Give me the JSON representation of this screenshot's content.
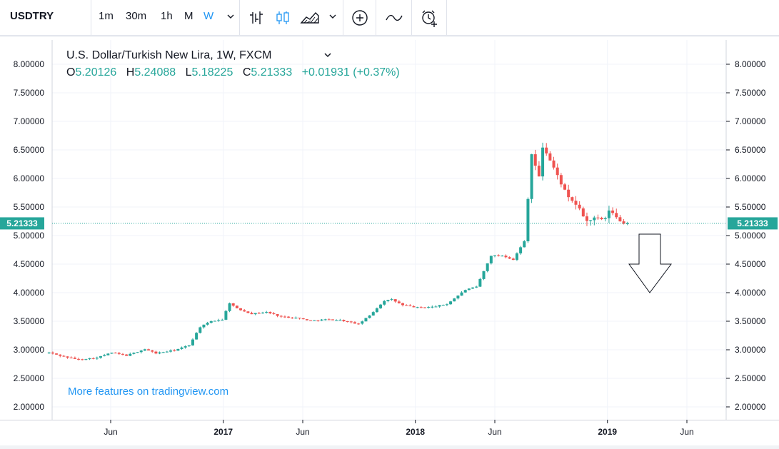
{
  "toolbar": {
    "symbol": "USDTRY",
    "intervals": [
      "1m",
      "30m",
      "1h",
      "M",
      "W"
    ],
    "active_interval": "W",
    "icons": [
      "bar-chart-icon",
      "candles-icon",
      "area-chart-icon",
      "chevron-down-icon",
      "add-compare-icon",
      "indicators-icon",
      "alert-clock-icon"
    ]
  },
  "legend": {
    "title": "U.S. Dollar/Turkish New Lira, 1W, FXCM",
    "o_label": "O",
    "o_value": "5.20126",
    "h_label": "H",
    "h_value": "5.24088",
    "l_label": "L",
    "l_value": "5.18225",
    "c_label": "C",
    "c_value": "5.21333",
    "change": "+0.01931 (+0.37%)"
  },
  "price_badge": "5.21333",
  "watermark": "More features on tradingview.com",
  "colors": {
    "up": "#26a69a",
    "down": "#ef5350",
    "accent": "#2196f3",
    "badge": "#26a69a"
  },
  "chart_data": {
    "type": "candlestick",
    "y_ticks": [
      "8.00000",
      "7.50000",
      "7.00000",
      "6.50000",
      "6.00000",
      "5.50000",
      "5.00000",
      "4.50000",
      "4.00000",
      "3.50000",
      "3.00000",
      "2.50000",
      "2.00000"
    ],
    "ylim": [
      1.9,
      8.25
    ],
    "x_ticks": [
      {
        "label": "Jun",
        "bold": false,
        "date": "2016-06-01"
      },
      {
        "label": "2017",
        "bold": true,
        "date": "2017-01-01"
      },
      {
        "label": "Jun",
        "bold": false,
        "date": "2017-06-01"
      },
      {
        "label": "2018",
        "bold": true,
        "date": "2018-01-01"
      },
      {
        "label": "Jun",
        "bold": false,
        "date": "2018-06-01"
      },
      {
        "label": "2019",
        "bold": true,
        "date": "2019-01-01"
      },
      {
        "label": "Jun",
        "bold": false,
        "date": "2019-06-01"
      }
    ],
    "last_price": 5.21333,
    "trend_close": [
      [
        "2016-02-05",
        2.95
      ],
      [
        "2016-03-04",
        2.88
      ],
      [
        "2016-04-01",
        2.83
      ],
      [
        "2016-05-06",
        2.86
      ],
      [
        "2016-06-03",
        2.95
      ],
      [
        "2016-07-01",
        2.9
      ],
      [
        "2016-08-05",
        3.01
      ],
      [
        "2016-08-26",
        2.94
      ],
      [
        "2016-09-30",
        2.99
      ],
      [
        "2016-10-28",
        3.08
      ],
      [
        "2016-11-18",
        3.4
      ],
      [
        "2016-12-09",
        3.5
      ],
      [
        "2016-12-30",
        3.53
      ],
      [
        "2017-01-13",
        3.82
      ],
      [
        "2017-01-27",
        3.72
      ],
      [
        "2017-02-24",
        3.63
      ],
      [
        "2017-03-24",
        3.66
      ],
      [
        "2017-04-21",
        3.58
      ],
      [
        "2017-05-19",
        3.56
      ],
      [
        "2017-06-16",
        3.51
      ],
      [
        "2017-07-14",
        3.53
      ],
      [
        "2017-08-11",
        3.52
      ],
      [
        "2017-09-15",
        3.45
      ],
      [
        "2017-10-06",
        3.6
      ],
      [
        "2017-11-03",
        3.86
      ],
      [
        "2017-11-17",
        3.88
      ],
      [
        "2017-12-08",
        3.78
      ],
      [
        "2018-01-05",
        3.74
      ],
      [
        "2018-02-02",
        3.75
      ],
      [
        "2018-03-02",
        3.8
      ],
      [
        "2018-04-06",
        4.05
      ],
      [
        "2018-04-27",
        4.1
      ],
      [
        "2018-05-25",
        4.65
      ],
      [
        "2018-06-15",
        4.65
      ],
      [
        "2018-07-06",
        4.58
      ],
      [
        "2018-07-27",
        4.9
      ],
      [
        "2018-08-10",
        6.43
      ],
      [
        "2018-08-24",
        6.02
      ],
      [
        "2018-08-31",
        6.55
      ],
      [
        "2018-09-07",
        6.45
      ],
      [
        "2018-09-28",
        6.05
      ],
      [
        "2018-10-19",
        5.65
      ],
      [
        "2018-11-02",
        5.55
      ],
      [
        "2018-11-23",
        5.25
      ],
      [
        "2018-12-07",
        5.3
      ],
      [
        "2018-12-28",
        5.28
      ],
      [
        "2019-01-04",
        5.45
      ],
      [
        "2019-01-18",
        5.32
      ],
      [
        "2019-02-01",
        5.21
      ]
    ]
  }
}
